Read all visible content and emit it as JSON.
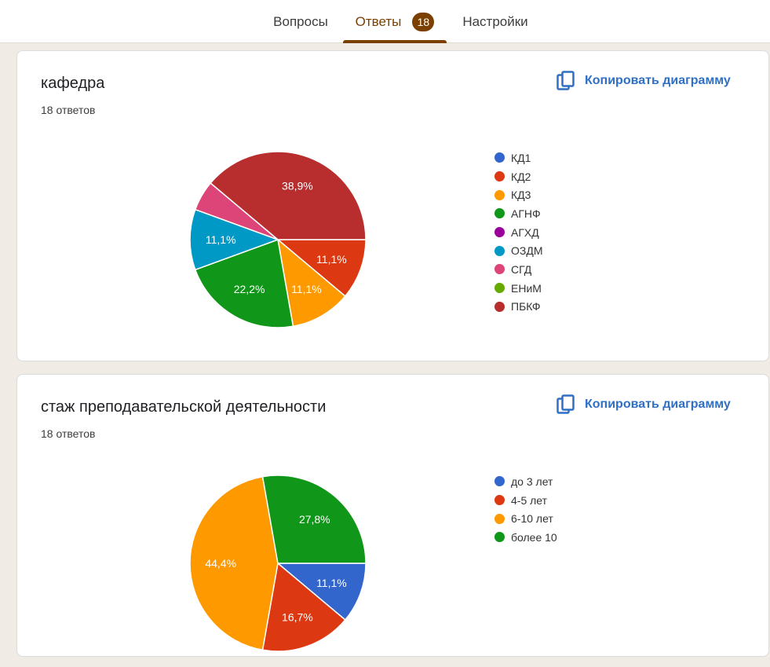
{
  "tabs": {
    "questions": "Вопросы",
    "answers": "Ответы",
    "answers_count": "18",
    "settings": "Настройки"
  },
  "accent_color": "#7b3f00",
  "copy_icon": "copy-icon",
  "charts": [
    {
      "title": "кафедра",
      "count": "18 ответов",
      "copy_label": "Копировать диаграмму",
      "chart_data": {
        "type": "pie",
        "categories": [
          "КД1",
          "КД2",
          "КД3",
          "АГНФ",
          "АГХД",
          "ОЗДМ",
          "СГД",
          "ЕНиМ",
          "ПБКФ"
        ],
        "values": [
          0,
          2,
          2,
          4,
          0,
          2,
          1,
          0,
          7
        ],
        "value_labels": [
          "",
          "11,1%",
          "11,1%",
          "22,2%",
          "",
          "11,1%",
          "",
          "",
          "38,9%"
        ],
        "colors": [
          "#3366cc",
          "#dc3912",
          "#ff9900",
          "#109618",
          "#990099",
          "#0099c6",
          "#dd4477",
          "#66aa00",
          "#b82e2e"
        ]
      }
    },
    {
      "title": "стаж преподавательской деятельности",
      "count": "18 ответов",
      "copy_label": "Копировать диаграмму",
      "chart_data": {
        "type": "pie",
        "categories": [
          "до 3 лет",
          "4-5 лет",
          "6-10 лет",
          "более 10"
        ],
        "values": [
          2,
          3,
          8,
          5
        ],
        "value_labels": [
          "11,1%",
          "16,7%",
          "44,4%",
          "27,8%"
        ],
        "colors": [
          "#3366cc",
          "#dc3912",
          "#ff9900",
          "#109618"
        ]
      }
    }
  ]
}
